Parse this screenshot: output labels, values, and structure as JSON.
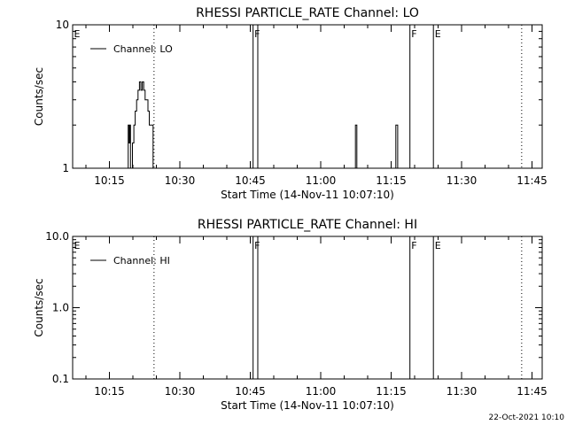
{
  "footer": {
    "timestamp": "22-Oct-2021 10:10"
  },
  "chart_data": [
    {
      "type": "line",
      "title": "RHESSI PARTICLE_RATE Channel: LO",
      "xlabel": "Start Time (14-Nov-11 10:07:10)",
      "ylabel": "Counts/sec",
      "yscale": "log",
      "xlim_minutes": [
        "10:07:10",
        "11:47:10"
      ],
      "xlim_min": [
        7.17,
        107.17
      ],
      "ylim": [
        1,
        10
      ],
      "x_tick_labels": [
        "10:15",
        "10:30",
        "10:45",
        "11:00",
        "11:15",
        "11:30",
        "11:45"
      ],
      "x_ticks_min": [
        15,
        30,
        45,
        60,
        75,
        90,
        105
      ],
      "y_tick_labels": [
        "1",
        "10"
      ],
      "y_ticks": [
        1,
        10
      ],
      "legend": {
        "label": "Channel: LO",
        "position": "top-left"
      },
      "series": [
        {
          "name": "Channel: LO",
          "points": [
            [
              18.9,
              1
            ],
            [
              19.0,
              2
            ],
            [
              19.2,
              1.5
            ],
            [
              19.4,
              2
            ],
            [
              19.5,
              1
            ],
            [
              19.7,
              1
            ],
            [
              19.9,
              1.5
            ],
            [
              20.2,
              2
            ],
            [
              20.5,
              2.5
            ],
            [
              20.8,
              3
            ],
            [
              21.1,
              3.5
            ],
            [
              21.4,
              4
            ],
            [
              21.7,
              3.5
            ],
            [
              22.0,
              4
            ],
            [
              22.3,
              3.5
            ],
            [
              22.6,
              3
            ],
            [
              22.9,
              3
            ],
            [
              23.2,
              2.5
            ],
            [
              23.5,
              2
            ],
            [
              23.8,
              2
            ],
            [
              24.1,
              2
            ],
            [
              24.3,
              1
            ],
            [
              67.0,
              1
            ],
            [
              67.4,
              2
            ],
            [
              67.7,
              1
            ],
            [
              75.6,
              1
            ],
            [
              76.0,
              2
            ],
            [
              76.4,
              1
            ]
          ]
        }
      ],
      "vlines_dotted_min": [
        24.5,
        102.8
      ],
      "vlines_solid_min": [
        45.6,
        46.6,
        79.0,
        84.0
      ],
      "flags": [
        {
          "label": "E",
          "x_min": 7.17
        },
        {
          "label": "F",
          "x_min": 45.6
        },
        {
          "label": "F",
          "x_min": 79.0
        },
        {
          "label": "E",
          "x_min": 84.0
        }
      ]
    },
    {
      "type": "line",
      "title": "RHESSI PARTICLE_RATE Channel: HI",
      "xlabel": "Start Time (14-Nov-11 10:07:10)",
      "ylabel": "Counts/sec",
      "yscale": "log",
      "xlim_minutes": [
        "10:07:10",
        "11:47:10"
      ],
      "xlim_min": [
        7.17,
        107.17
      ],
      "ylim": [
        0.1,
        10
      ],
      "x_tick_labels": [
        "10:15",
        "10:30",
        "10:45",
        "11:00",
        "11:15",
        "11:30",
        "11:45"
      ],
      "x_ticks_min": [
        15,
        30,
        45,
        60,
        75,
        90,
        105
      ],
      "y_tick_labels": [
        "0.1",
        "1.0",
        "10.0"
      ],
      "y_ticks": [
        0.1,
        1,
        10
      ],
      "legend": {
        "label": "Channel: HI",
        "position": "top-left"
      },
      "series": [
        {
          "name": "Channel: HI",
          "points": []
        }
      ],
      "vlines_dotted_min": [
        24.5,
        102.8
      ],
      "vlines_solid_min": [
        45.6,
        46.6,
        79.0,
        84.0
      ],
      "flags": [
        {
          "label": "E",
          "x_min": 7.17
        },
        {
          "label": "F",
          "x_min": 45.6
        },
        {
          "label": "F",
          "x_min": 79.0
        },
        {
          "label": "E",
          "x_min": 84.0
        }
      ]
    }
  ]
}
